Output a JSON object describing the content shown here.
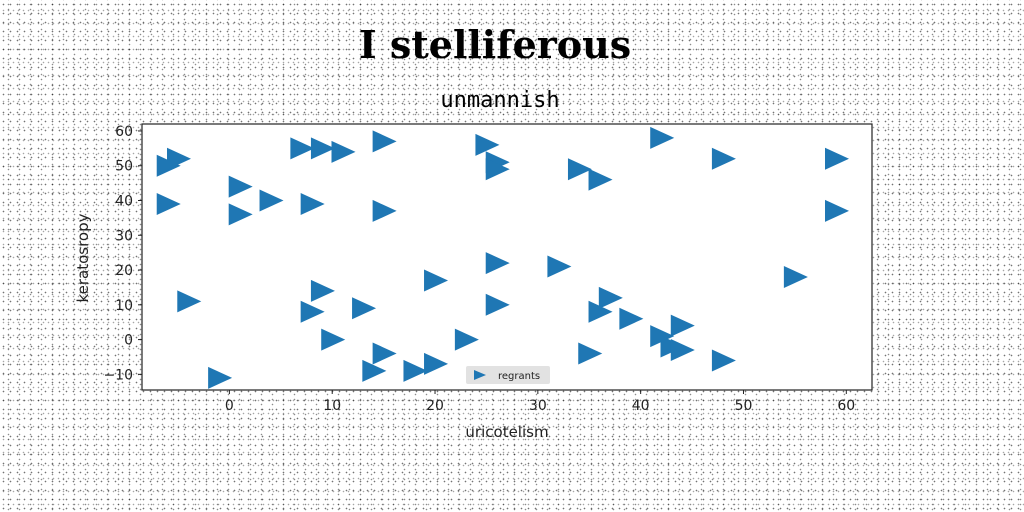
{
  "title": "I stelliferous",
  "chart_data": {
    "type": "scatter",
    "title": "unmannish",
    "xlabel": "uricotelism",
    "ylabel": "keratosropy",
    "xlim": [
      -8.5,
      62.5
    ],
    "ylim": [
      -14.5,
      62
    ],
    "xticks": [
      0,
      10,
      20,
      30,
      40,
      50,
      60
    ],
    "yticks": [
      -10,
      0,
      10,
      20,
      30,
      40,
      50,
      60
    ],
    "grid": false,
    "legend_position": "lower-center",
    "marker": "triangle-right",
    "color": "#1f77b4",
    "series": [
      {
        "name": "regrants",
        "points": [
          [
            -6,
            50
          ],
          [
            -5,
            52
          ],
          [
            -6,
            39
          ],
          [
            -4,
            11
          ],
          [
            -1,
            -11
          ],
          [
            1,
            44
          ],
          [
            1,
            36
          ],
          [
            4,
            40
          ],
          [
            7,
            55
          ],
          [
            9,
            55
          ],
          [
            11,
            54
          ],
          [
            8,
            39
          ],
          [
            8,
            8
          ],
          [
            9,
            14
          ],
          [
            10,
            0
          ],
          [
            13,
            9
          ],
          [
            15,
            57
          ],
          [
            15,
            37
          ],
          [
            15,
            -4
          ],
          [
            14,
            -9
          ],
          [
            18,
            -9
          ],
          [
            20,
            -7
          ],
          [
            20,
            17
          ],
          [
            23,
            0
          ],
          [
            25,
            56
          ],
          [
            26,
            51
          ],
          [
            26,
            49
          ],
          [
            26,
            22
          ],
          [
            26,
            10
          ],
          [
            32,
            21
          ],
          [
            34,
            49
          ],
          [
            36,
            46
          ],
          [
            35,
            -4
          ],
          [
            36,
            8
          ],
          [
            37,
            12
          ],
          [
            39,
            6
          ],
          [
            42,
            58
          ],
          [
            42,
            1
          ],
          [
            43,
            -2
          ],
          [
            44,
            -3
          ],
          [
            44,
            4
          ],
          [
            48,
            52
          ],
          [
            48,
            -6
          ],
          [
            55,
            18
          ],
          [
            59,
            52
          ],
          [
            59,
            37
          ]
        ]
      }
    ]
  }
}
